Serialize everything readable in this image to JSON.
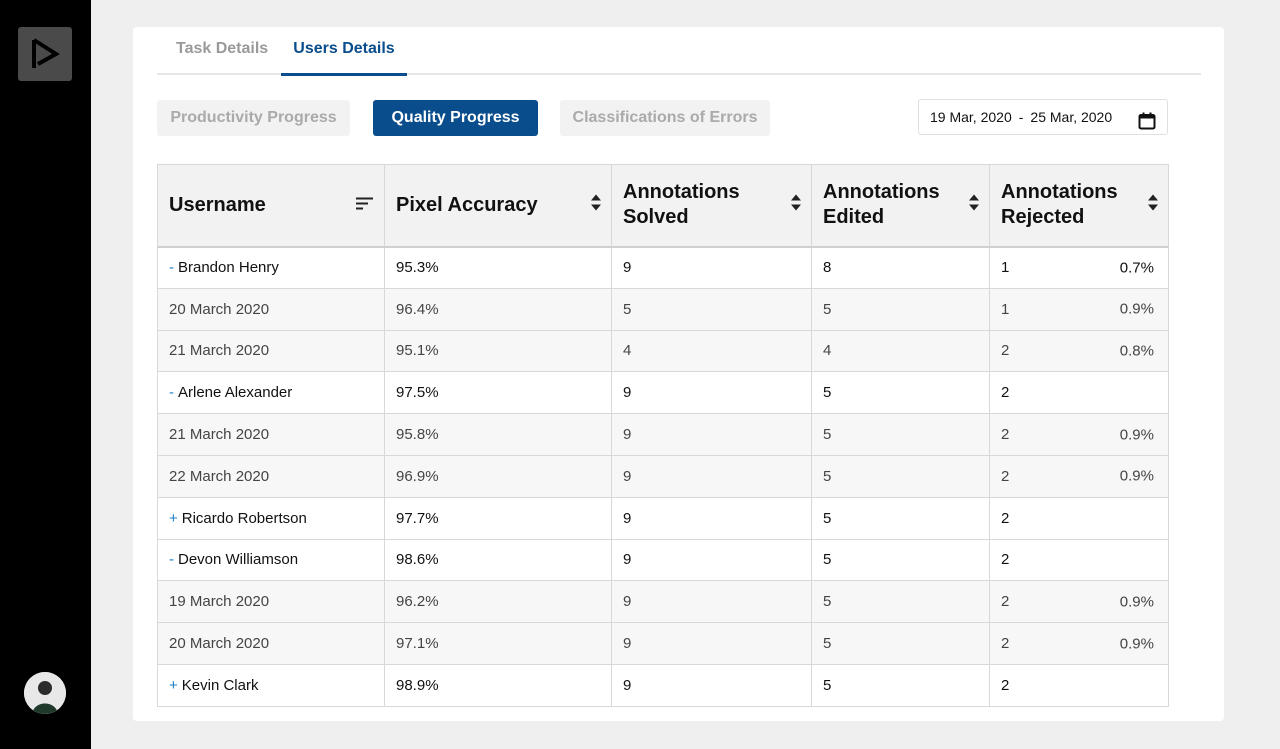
{
  "tabs": [
    {
      "label": "Task Details",
      "active": false
    },
    {
      "label": "Users Details",
      "active": true
    }
  ],
  "filters": {
    "productivity": "Productivity Progress",
    "quality": "Quality Progress",
    "classifications": "Classifications of Errors"
  },
  "date_range": {
    "start": "19 Mar, 2020",
    "separator": "-",
    "end": "25 Mar, 2020"
  },
  "table": {
    "headers": {
      "username": "Username",
      "pixel_accuracy": "Pixel Accuracy",
      "solved_line1": "Annotations",
      "solved_line2": "Solved",
      "edited_line1": "Annotations",
      "edited_line2": "Edited",
      "rejected_line1": "Annotations",
      "rejected_line2": "Rejected"
    },
    "rows": [
      {
        "toggle": "-",
        "name": "Brandon Henry",
        "accuracy": "95.3%",
        "solved": "9",
        "edited": "8",
        "rejected": "1",
        "rejected_pct": "0.7%"
      },
      {
        "name": "20 March 2020",
        "accuracy": "96.4%",
        "solved": "5",
        "edited": "5",
        "rejected": "1",
        "rejected_pct": "0.9%"
      },
      {
        "name": "21 March 2020",
        "accuracy": "95.1%",
        "solved": "4",
        "edited": "4",
        "rejected": "2",
        "rejected_pct": "0.8%"
      },
      {
        "toggle": "-",
        "name": "Arlene Alexander",
        "accuracy": "97.5%",
        "solved": "9",
        "edited": "5",
        "rejected": "2",
        "rejected_pct": ""
      },
      {
        "name": "21 March 2020",
        "accuracy": "95.8%",
        "solved": "9",
        "edited": "5",
        "rejected": "2",
        "rejected_pct": "0.9%"
      },
      {
        "name": "22 March 2020",
        "accuracy": "96.9%",
        "solved": "9",
        "edited": "5",
        "rejected": "2",
        "rejected_pct": "0.9%"
      },
      {
        "toggle": "+",
        "name": "Ricardo Robertson",
        "accuracy": "97.7%",
        "solved": "9",
        "edited": "5",
        "rejected": "2",
        "rejected_pct": ""
      },
      {
        "toggle": "-",
        "name": "Devon Williamson",
        "accuracy": "98.6%",
        "solved": "9",
        "edited": "5",
        "rejected": "2",
        "rejected_pct": ""
      },
      {
        "name": "19 March 2020",
        "accuracy": "96.2%",
        "solved": "9",
        "edited": "5",
        "rejected": "2",
        "rejected_pct": "0.9%"
      },
      {
        "name": "20 March 2020",
        "accuracy": "97.1%",
        "solved": "9",
        "edited": "5",
        "rejected": "2",
        "rejected_pct": "0.9%"
      },
      {
        "toggle": "+",
        "name": "Kevin Clark",
        "accuracy": "98.9%",
        "solved": "9",
        "edited": "5",
        "rejected": "2",
        "rejected_pct": ""
      }
    ]
  },
  "icons": {
    "logo": "play-logo-icon",
    "filter": "sort-lines-icon",
    "sort": "sort-arrows-icon",
    "calendar": "calendar-icon",
    "avatar": "user-avatar"
  },
  "colors": {
    "accent": "#0a4d8c",
    "toggle": "#1e7fc9",
    "rail": "#000000"
  }
}
